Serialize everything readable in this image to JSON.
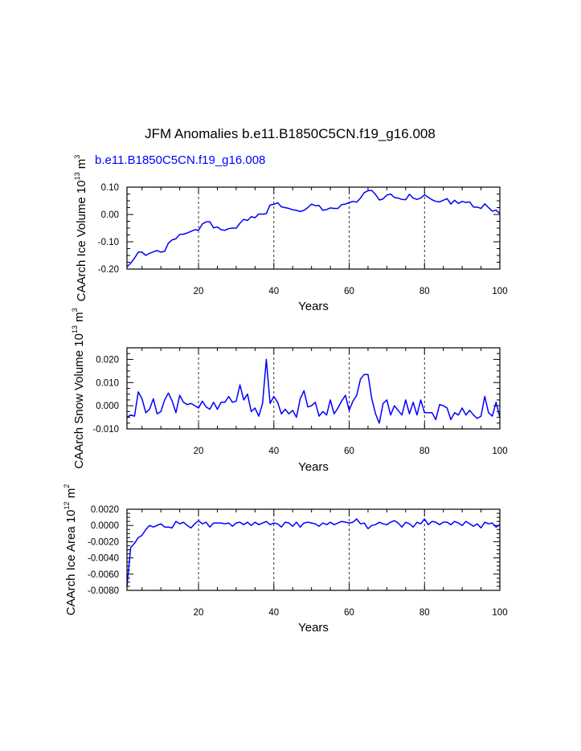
{
  "figure": {
    "title": "JFM Anomalies b.e11.B1850C5CN.f19_g16.008",
    "case_label": "b.e11.B1850C5CN.f19_g16.008",
    "case_color": "#0000ff",
    "line_color": "#0000ff"
  },
  "chart_data": [
    {
      "type": "line",
      "name": "ice-volume",
      "xlabel": "Years",
      "ylabel": "CAArch Ice Volume 10",
      "ylabel_exp": "13",
      "ylabel_unit": " m",
      "ylabel_unit_exp": "3",
      "xlim": [
        1,
        100
      ],
      "ylim": [
        -0.2,
        0.1
      ],
      "xticks": [
        20,
        40,
        60,
        80,
        100
      ],
      "xtick_labels": [
        "20",
        "40",
        "60",
        "80",
        "100"
      ],
      "yticks": [
        -0.2,
        -0.1,
        0.0,
        0.1
      ],
      "ytick_labels": [
        "-0.20",
        "-0.10",
        "0.00",
        "0.10"
      ],
      "yminor": 0.025,
      "vlines": [
        20,
        40,
        60,
        80
      ],
      "series": [
        {
          "name": "b.e11.B1850C5CN.f19_g16.008",
          "x": [
            1,
            2,
            3,
            4,
            5,
            6,
            7,
            8,
            9,
            10,
            11,
            12,
            13,
            14,
            15,
            16,
            17,
            18,
            19,
            20,
            21,
            22,
            23,
            24,
            25,
            26,
            27,
            28,
            29,
            30,
            31,
            32,
            33,
            34,
            35,
            36,
            37,
            38,
            39,
            40,
            41,
            42,
            43,
            44,
            45,
            46,
            47,
            48,
            49,
            50,
            51,
            52,
            53,
            54,
            55,
            56,
            57,
            58,
            59,
            60,
            61,
            62,
            63,
            64,
            65,
            66,
            67,
            68,
            69,
            70,
            71,
            72,
            73,
            74,
            75,
            76,
            77,
            78,
            79,
            80,
            81,
            82,
            83,
            84,
            85,
            86,
            87,
            88,
            89,
            90,
            91,
            92,
            93,
            94,
            95,
            96,
            97,
            98,
            99,
            100
          ],
          "values": [
            -0.192,
            -0.178,
            -0.16,
            -0.138,
            -0.138,
            -0.15,
            -0.142,
            -0.137,
            -0.132,
            -0.138,
            -0.135,
            -0.105,
            -0.093,
            -0.089,
            -0.073,
            -0.072,
            -0.068,
            -0.062,
            -0.056,
            -0.058,
            -0.035,
            -0.027,
            -0.027,
            -0.049,
            -0.046,
            -0.056,
            -0.058,
            -0.052,
            -0.05,
            -0.05,
            -0.032,
            -0.018,
            -0.022,
            -0.008,
            -0.012,
            0.002,
            0.001,
            0.003,
            0.035,
            0.037,
            0.043,
            0.028,
            0.025,
            0.022,
            0.017,
            0.015,
            0.011,
            0.015,
            0.025,
            0.038,
            0.032,
            0.033,
            0.015,
            0.018,
            0.024,
            0.022,
            0.022,
            0.036,
            0.038,
            0.043,
            0.048,
            0.045,
            0.06,
            0.08,
            0.087,
            0.088,
            0.073,
            0.053,
            0.057,
            0.071,
            0.075,
            0.062,
            0.06,
            0.055,
            0.054,
            0.074,
            0.06,
            0.055,
            0.06,
            0.072,
            0.063,
            0.054,
            0.048,
            0.046,
            0.052,
            0.058,
            0.038,
            0.052,
            0.04,
            0.048,
            0.044,
            0.046,
            0.027,
            0.027,
            0.022,
            0.039,
            0.025,
            0.012,
            0.016,
            0.003
          ]
        }
      ]
    },
    {
      "type": "line",
      "name": "snow-volume",
      "xlabel": "Years",
      "ylabel": "CAArch Snow Volume 10",
      "ylabel_exp": "13",
      "ylabel_unit": " m",
      "ylabel_unit_exp": "3",
      "xlim": [
        1,
        100
      ],
      "ylim": [
        -0.01,
        0.025
      ],
      "xticks": [
        20,
        40,
        60,
        80,
        100
      ],
      "xtick_labels": [
        "20",
        "40",
        "60",
        "80",
        "100"
      ],
      "yticks": [
        -0.01,
        0.0,
        0.01,
        0.02
      ],
      "ytick_labels": [
        "-0.010",
        "0.000",
        "0.010",
        "0.020"
      ],
      "yminor": 0.0025,
      "vlines": [
        20,
        40,
        60,
        80
      ],
      "series": [
        {
          "name": "b.e11.B1850C5CN.f19_g16.008",
          "x": [
            1,
            2,
            3,
            4,
            5,
            6,
            7,
            8,
            9,
            10,
            11,
            12,
            13,
            14,
            15,
            16,
            17,
            18,
            19,
            20,
            21,
            22,
            23,
            24,
            25,
            26,
            27,
            28,
            29,
            30,
            31,
            32,
            33,
            34,
            35,
            36,
            37,
            38,
            39,
            40,
            41,
            42,
            43,
            44,
            45,
            46,
            47,
            48,
            49,
            50,
            51,
            52,
            53,
            54,
            55,
            56,
            57,
            58,
            59,
            60,
            61,
            62,
            63,
            64,
            65,
            66,
            67,
            68,
            69,
            70,
            71,
            72,
            73,
            74,
            75,
            76,
            77,
            78,
            79,
            80,
            81,
            82,
            83,
            84,
            85,
            86,
            87,
            88,
            89,
            90,
            91,
            92,
            93,
            94,
            95,
            96,
            97,
            98,
            99,
            100
          ],
          "values": [
            -0.005,
            -0.004,
            -0.0045,
            0.006,
            0.003,
            -0.003,
            -0.0015,
            0.003,
            -0.0035,
            -0.0025,
            0.0025,
            0.0055,
            0.002,
            -0.003,
            0.0045,
            0.0015,
            0.0005,
            0.001,
            0.0,
            -0.001,
            0.002,
            -0.0005,
            -0.0015,
            0.0015,
            -0.0015,
            0.0015,
            0.0015,
            0.004,
            0.0015,
            0.002,
            0.009,
            0.0025,
            0.005,
            -0.0025,
            -0.001,
            -0.0045,
            0.001,
            0.02,
            0.001,
            0.004,
            0.0015,
            -0.0035,
            -0.0015,
            -0.0035,
            -0.002,
            -0.005,
            0.003,
            0.0065,
            -0.0005,
            0.0,
            0.0015,
            -0.0045,
            -0.0025,
            -0.004,
            0.0025,
            -0.0035,
            -0.001,
            0.002,
            0.0045,
            -0.002,
            0.002,
            0.0045,
            0.0115,
            0.0135,
            0.0135,
            0.003,
            -0.0035,
            -0.0075,
            0.001,
            0.0025,
            -0.004,
            0.0,
            -0.002,
            -0.004,
            0.0025,
            -0.0035,
            0.0015,
            -0.004,
            0.0025,
            -0.003,
            -0.003,
            -0.003,
            -0.006,
            0.0005,
            0.0,
            -0.001,
            -0.006,
            -0.003,
            -0.004,
            -0.001,
            -0.004,
            -0.002,
            -0.004,
            -0.0055,
            -0.0045,
            0.004,
            -0.003,
            -0.0045,
            0.0015,
            -0.005
          ]
        }
      ]
    },
    {
      "type": "line",
      "name": "ice-area",
      "xlabel": "Years",
      "ylabel": "CAArch Ice Area 10",
      "ylabel_exp": "12",
      "ylabel_unit": " m",
      "ylabel_unit_exp": "2",
      "xlim": [
        1,
        100
      ],
      "ylim": [
        -0.008,
        0.002
      ],
      "xticks": [
        20,
        40,
        60,
        80,
        100
      ],
      "xtick_labels": [
        "20",
        "40",
        "60",
        "80",
        "100"
      ],
      "yticks": [
        -0.008,
        -0.006,
        -0.004,
        -0.002,
        0.0,
        0.002
      ],
      "ytick_labels": [
        "-0.0080",
        "-0.0060",
        "-0.0040",
        "-0.0020",
        "0.0000",
        "0.0020"
      ],
      "yminor": 0.0005,
      "vlines": [
        20,
        40,
        60,
        80
      ],
      "series": [
        {
          "name": "b.e11.B1850C5CN.f19_g16.008",
          "x": [
            1,
            2,
            3,
            4,
            5,
            6,
            7,
            8,
            9,
            10,
            11,
            12,
            13,
            14,
            15,
            16,
            17,
            18,
            19,
            20,
            21,
            22,
            23,
            24,
            25,
            26,
            27,
            28,
            29,
            30,
            31,
            32,
            33,
            34,
            35,
            36,
            37,
            38,
            39,
            40,
            41,
            42,
            43,
            44,
            45,
            46,
            47,
            48,
            49,
            50,
            51,
            52,
            53,
            54,
            55,
            56,
            57,
            58,
            59,
            60,
            61,
            62,
            63,
            64,
            65,
            66,
            67,
            68,
            69,
            70,
            71,
            72,
            73,
            74,
            75,
            76,
            77,
            78,
            79,
            80,
            81,
            82,
            83,
            84,
            85,
            86,
            87,
            88,
            89,
            90,
            91,
            92,
            93,
            94,
            95,
            96,
            97,
            98,
            99,
            100
          ],
          "values": [
            -0.0075,
            -0.0027,
            -0.0022,
            -0.0015,
            -0.0012,
            -0.0005,
            0.0,
            -0.0002,
            0.0,
            0.0002,
            -0.0002,
            -0.0002,
            -0.0003,
            0.0005,
            0.0002,
            0.0004,
            0.0,
            -0.0003,
            0.0002,
            0.0006,
            0.0002,
            0.0004,
            -0.0002,
            0.0003,
            0.0003,
            0.0003,
            0.0002,
            0.0003,
            -0.0001,
            0.0003,
            0.0004,
            0.0001,
            0.0004,
            0.0,
            0.0004,
            0.0001,
            0.0003,
            0.0005,
            0.0001,
            0.0003,
            0.0002,
            -0.0002,
            0.0004,
            0.0003,
            -0.0001,
            0.0004,
            -0.0002,
            0.0003,
            0.0004,
            0.0003,
            0.0002,
            -0.0001,
            0.0003,
            0.0001,
            0.0004,
            0.0001,
            0.0003,
            0.0005,
            0.0004,
            0.0003,
            0.0004,
            0.0008,
            0.0002,
            0.0003,
            -0.0004,
            0.0,
            0.0001,
            0.0004,
            0.0002,
            0.0001,
            0.0004,
            0.0006,
            0.0003,
            -0.0002,
            0.0004,
            0.0002,
            -0.0002,
            0.0004,
            0.0002,
            0.0008,
            0.0001,
            0.0005,
            0.0004,
            0.0001,
            0.0004,
            0.0004,
            0.0001,
            0.0005,
            0.0003,
            0.0,
            0.0005,
            0.0002,
            -0.0001,
            0.0002,
            -0.0003,
            0.0004,
            0.0002,
            0.0003,
            -0.0002,
            0.0001
          ]
        }
      ]
    }
  ]
}
